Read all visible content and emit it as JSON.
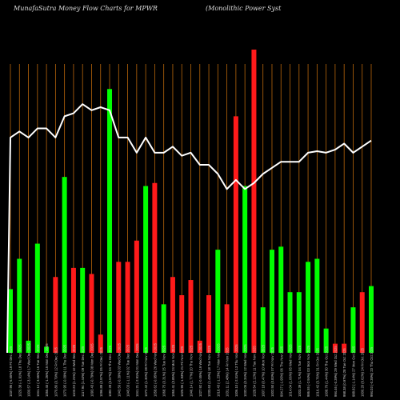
{
  "header": {
    "left": "MunafaSutra  Money Flow  Charts for MPWR",
    "right": "(Monolithic Power Syst"
  },
  "chart_data": {
    "type": "bar",
    "title": "MunafaSutra  Money Flow  Charts for MPWR",
    "subtitle": "(Monolithic Power Syst",
    "grid": true,
    "ylim": [
      0,
      100
    ],
    "colors": {
      "up": "#00ff00",
      "down": "#ff1a1a",
      "line": "#ffffff",
      "grid": "#b8660b",
      "background": "#000000"
    },
    "categories": [
      "1037.96 (-5.65%) 19 Fri Dec 2025",
      "1020.38 (-1.91%) 18 Thu Dec 2025",
      "1000.57 (-3.14%) 17 Wed Dec 2025",
      "1041.12 (-3.66%) 16 Tue Dec 2025",
      "1055.45 (-1.26%) 15 Mon Dec 2025",
      "1070.80 (0.79%) 12 Fri Dec 2025",
      "1073.95 (-0.09%) 11 Thu Dec 2025",
      "1103.23 (1.21%) 10 Wed Dec 2025",
      "1117.94 (1.44%) 09 Tue Dec 2025",
      "1093.43 (-0.79%) 08 Mon Dec 2025",
      "1096.89 (0.97%) 05 Fri Dec 2025",
      "1082.28 (3.57%) 04 Thu Dec 2025",
      "1043.56 (-0.39%) 03 Wed Dec 2025",
      "1045.03 (-1.11%) 02 Tue Dec 2025",
      "1041.21 (-2.91%) 01 Mon Dec 2025",
      "1072.42 (1.30%) 28 Fri Nov 2025",
      "1058.62 (-0.95%) 26 Wed Nov 2025",
      "1068.75 (0.31%) 25 Tue Nov 2025",
      "1065.41 (3.85%) 24 Mon Nov 2025",
      "1025.95 (-1.93%) 21 Fri Nov 2025",
      "1046.14 (1.77%) 20 Thu Nov 2025",
      "1027.92 (-0.55%) 19 Wed Nov 2025",
      "1033.63 (1.49%) 18 Tue Nov 2025",
      "1018.43 (-1.23%) 17 Mon Nov 2025",
      "1031.11 (2.48%) 14 Fri Nov 2025",
      "1006.10 (-2.51%) 13 Thu Nov 2025",
      "1032.05 (0.34%) 12 Wed Nov 2025",
      "1028.54 (2.12%) 11 Tue Nov 2025",
      "1007.18 (0.47%) 10 Mon Nov 2025",
      "1002.50 (0.83%) 07 Fri Nov 2025",
      "994.27 (-1.95%) 06 Thu Nov 2025",
      "1014.04 (1.06%) 05 Wed Nov 2025",
      "1003.39 (1.71%) 04 Tue Nov 2025",
      "986.55 (-2.94%) 03 Mon Nov 2025",
      "1016.42 (0.76%) 31 Fri Oct 2025",
      "1008.76 (1.44%) 30 Thu Oct 2025",
      "994.46 (-0.39%) 29 Wed Oct 2025",
      "998.38 (0.97%) 28 Tue Oct 2025",
      "988.82 (-1.14%) 27 Mon Oct 2025",
      "1000.20 (0.62%) 24 Fri Oct 2025",
      "994.03 (-0.35%) 23 Thu Oct 2025"
    ],
    "values": [
      21,
      31,
      4,
      36,
      2,
      25,
      58,
      28,
      28,
      26,
      6,
      87,
      30,
      30,
      37,
      55,
      56,
      16,
      25,
      19,
      24,
      4,
      19,
      34,
      16,
      78,
      55,
      100,
      15,
      34,
      35,
      20,
      20,
      30,
      31,
      8,
      3,
      3,
      15,
      20,
      22
    ],
    "directions": [
      "up",
      "up",
      "up",
      "up",
      "up",
      "down",
      "up",
      "down",
      "up",
      "down",
      "down",
      "up",
      "down",
      "down",
      "down",
      "up",
      "down",
      "up",
      "down",
      "down",
      "down",
      "down",
      "down",
      "up",
      "down",
      "down",
      "up",
      "down",
      "up",
      "up",
      "up",
      "up",
      "up",
      "up",
      "up",
      "up",
      "down",
      "down",
      "up",
      "down",
      "up"
    ],
    "line": [
      71,
      73,
      71,
      74,
      74,
      71,
      78,
      79,
      82,
      80,
      81,
      80,
      71,
      71,
      66,
      71,
      66,
      66,
      68,
      65,
      66,
      62,
      62,
      59,
      54,
      57,
      54,
      56,
      59,
      61,
      63,
      63,
      63,
      66,
      66.5,
      66,
      67,
      69,
      66,
      68,
      70
    ]
  }
}
